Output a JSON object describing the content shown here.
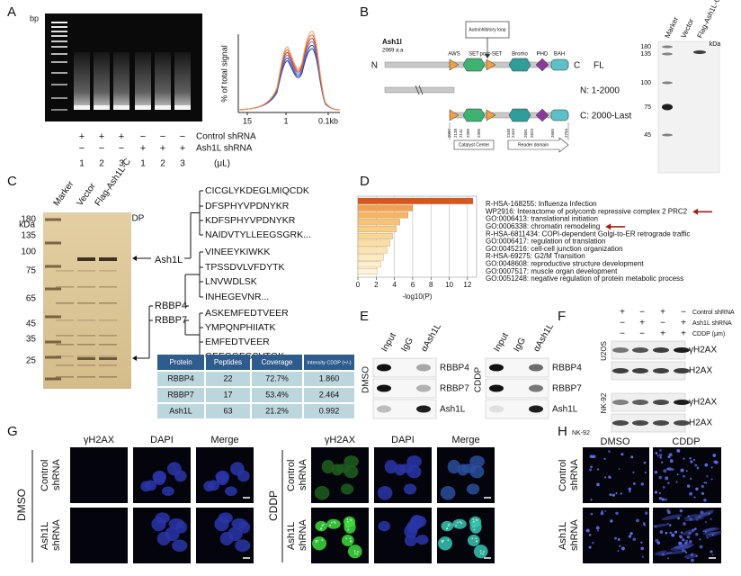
{
  "panels": {
    "A": {
      "label": "A",
      "gel_unit": "bp",
      "profile": {
        "y_label": "% of total signal",
        "x_ticks": [
          "15",
          "1",
          "0.1kb"
        ]
      },
      "rows": [
        {
          "name": "Control shRNA",
          "signs": [
            "+",
            "+",
            "+",
            "−",
            "−",
            "−"
          ]
        },
        {
          "name": "Ash1L shRNA",
          "signs": [
            "−",
            "−",
            "−",
            "+",
            "+",
            "+"
          ]
        }
      ],
      "lanes": [
        "1",
        "2",
        "3",
        "1",
        "2",
        "3"
      ],
      "unit": "(μL)"
    },
    "B": {
      "label": "B",
      "protein": "Ash1l",
      "length": "2969 a.a",
      "n_end": "N",
      "c_end": "C",
      "loop": "Autoinhibitory loop",
      "domains": [
        "AWS",
        "SET",
        "post-SET",
        "Bromo",
        "PHD",
        "BAH"
      ],
      "constructs": [
        "FL",
        "N: 1-2000",
        "C: 2000-Last"
      ],
      "positions": [
        "2087",
        "2138",
        "2141",
        "2289",
        "2305",
        "2348",
        "2443",
        "2581",
        "2623",
        "2665",
        "2794"
      ],
      "regions": [
        "Catalyst Center",
        "Reader domain"
      ],
      "blot": {
        "lanes": [
          "Marker",
          "Vector",
          "Flag-Ash1L-C"
        ],
        "unit": "kDa",
        "markers": [
          "180",
          "135",
          "100",
          "75",
          "45"
        ]
      }
    },
    "C": {
      "label": "C",
      "lanes": [
        "Marker",
        "Vector",
        "Flag-Ash1L-C"
      ],
      "treatment": "CDDP",
      "signs": [
        "−",
        "+"
      ],
      "unit": "kDa",
      "markers": [
        "180",
        "135",
        "100",
        "75",
        "65",
        "45",
        "35",
        "25"
      ],
      "bands": [
        "Ash1L",
        "RBBP4",
        "RBBP7"
      ],
      "peptides": [
        [
          "CICGLYKDEGLMIQCDK",
          "DFSPHYVPDNYKR",
          "KDFSPHYVPDNYKR",
          "NAIDVTYLLEEGSGRK..."
        ],
        [
          "VINEEYKIWKK",
          "TPSSDVLVFDYTK",
          "LNVWDLSK",
          "INHEGEVNR..."
        ],
        [
          "ASKEMFEDTVEER",
          "YMPQNPHIIATK",
          "EMFEDTVEER",
          "GEFGGFGSVTGK..."
        ]
      ],
      "table": {
        "header": [
          "Protein",
          "Peptides",
          "Coverage",
          "Intensity CDDP (+/-)"
        ],
        "rows": [
          [
            "RBBP4",
            "22",
            "72.7%",
            "1.860"
          ],
          [
            "RBBP7",
            "17",
            "53.4%",
            "2.464"
          ],
          [
            "Ash1L",
            "63",
            "21.2%",
            "0.992"
          ]
        ]
      }
    },
    "D": {
      "label": "D",
      "x_label": "-log10(P)",
      "xlim": [
        0,
        13
      ],
      "xticks": [
        0,
        2,
        4,
        6,
        8,
        10,
        12
      ],
      "terms": [
        "R-HSA-168255: Influenza Infection",
        "WP2916: Interactome of polycomb repressive complex 2 PRC2",
        "GO:0006413: translational initiation",
        "GO:0006338: chromatin remodeling",
        "R-HSA-6811434: COPI-dependent Golgi-to-ER retrograde traffic",
        "GO:0006417: regulation of translation",
        "GO:0045216: cell-cell junction organization",
        "R-HSA-69275: G2/M Transition",
        "GO:0048608: reproductive structure development",
        "GO:0007517: muscle organ development",
        "GO:0051248: negative regulation of protein metabolic process"
      ],
      "values": [
        12.6,
        6.0,
        5.5,
        4.6,
        4.2,
        3.8,
        3.5,
        3.2,
        2.8,
        2.5,
        2.1
      ],
      "colors": [
        "#d9541e",
        "#f0a050",
        "#f4b463",
        "#f6c275",
        "#f8cd86",
        "#f9d696",
        "#fadea6",
        "#fbe4b3",
        "#fce9c0",
        "#fdeecc",
        "#fef3d8"
      ]
    },
    "E": {
      "label": "E",
      "lanes": [
        "Input",
        "IgG",
        "αAsh1L"
      ],
      "conditions": [
        "DMSO",
        "CDDP"
      ],
      "proteins": [
        "RBBP4",
        "RBBP7",
        "Ash1L"
      ]
    },
    "F": {
      "label": "F",
      "rows": [
        {
          "name": "Control shRNA",
          "signs": [
            "+",
            "−",
            "+",
            "−"
          ]
        },
        {
          "name": "Ash1L shRNA",
          "signs": [
            "−",
            "+",
            "−",
            "+"
          ]
        },
        {
          "name": "CDDP (μm)",
          "signs": [
            "−",
            "−",
            "+",
            "+"
          ]
        }
      ],
      "cells": [
        "U2OS",
        "NK-92"
      ],
      "proteins": [
        "γH2AX",
        "H2AX"
      ]
    },
    "G": {
      "label": "G",
      "channels": [
        "γH2AX",
        "DAPI",
        "Merge"
      ],
      "conditions": [
        "DMSO",
        "CDDP"
      ],
      "groups": [
        "Control shRNA",
        "Ash1L shRNA"
      ]
    },
    "H": {
      "label": "H",
      "cell": "NK-92",
      "conditions": [
        "DMSO",
        "CDDP"
      ],
      "groups": [
        "Control shRNA",
        "Ash1L shRNA"
      ]
    }
  }
}
